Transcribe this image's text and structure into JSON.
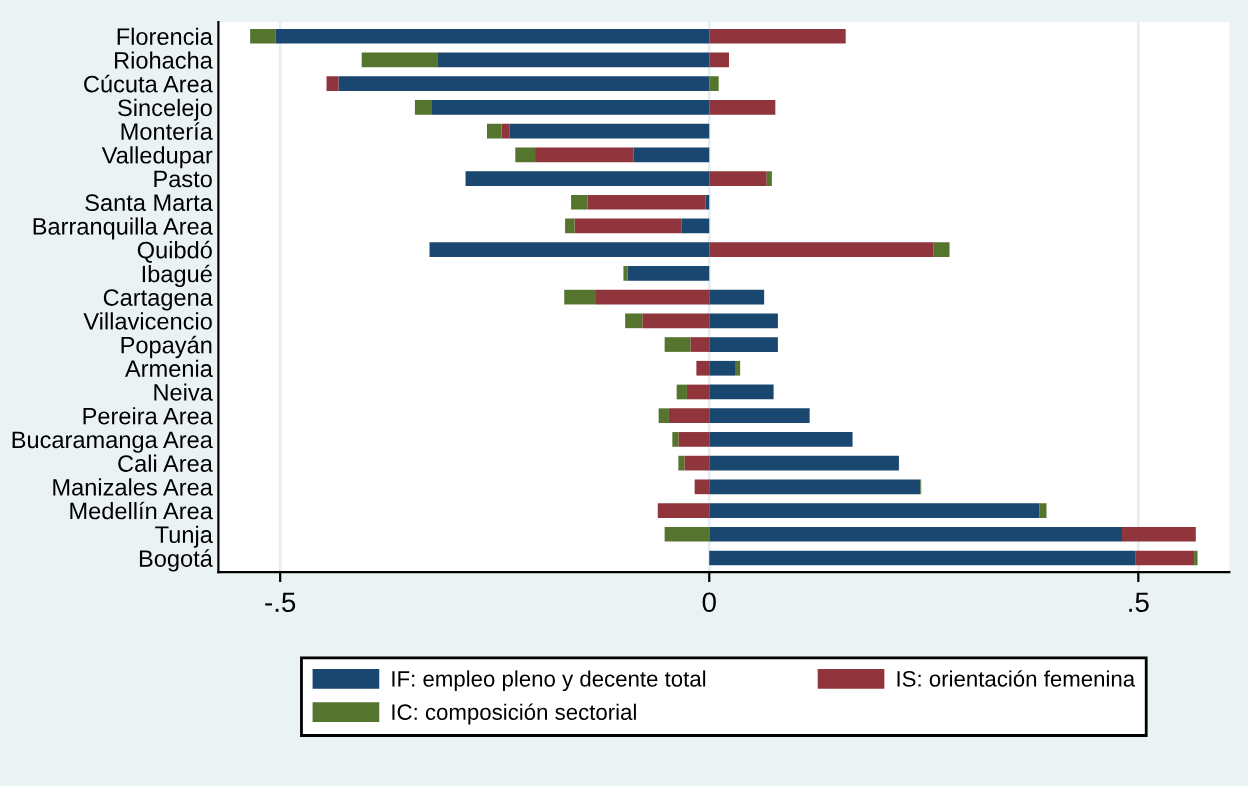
{
  "chart_data": {
    "type": "bar",
    "orientation": "horizontal",
    "stacked": true,
    "categories": [
      "Florencia",
      "Riohacha",
      "Cúcuta Area",
      "Sincelejo",
      "Montería",
      "Valledupar",
      "Pasto",
      "Santa Marta",
      "Barranquilla Area",
      "Quibdó",
      "Ibagué",
      "Cartagena",
      "Villavicencio",
      "Popayán",
      "Armenia",
      "Neiva",
      "Pereira Area",
      "Bucaramanga Area",
      "Cali Area",
      "Manizales Area",
      "Medellín Area",
      "Tunja",
      "Bogotá"
    ],
    "series": [
      {
        "name": "IF: empleo pleno y decente total",
        "color": "#1a476f",
        "values": [
          -0.505,
          -0.317,
          -0.432,
          -0.324,
          -0.233,
          -0.088,
          -0.284,
          -0.004,
          -0.032,
          -0.326,
          -0.095,
          0.064,
          0.08,
          0.08,
          0.03,
          0.075,
          0.117,
          0.167,
          0.221,
          0.246,
          0.385,
          0.481,
          0.497
        ]
      },
      {
        "name": "IS: orientación femenina",
        "color": "#90353b",
        "values": [
          0.159,
          0.023,
          -0.014,
          0.077,
          -0.009,
          -0.115,
          0.067,
          -0.138,
          -0.125,
          0.261,
          null,
          -0.132,
          -0.078,
          -0.022,
          -0.015,
          -0.026,
          -0.047,
          -0.036,
          -0.029,
          -0.017,
          -0.06,
          0.086,
          0.068
        ]
      },
      {
        "name": "IC: composición sectorial",
        "color": "#55752f",
        "values": [
          -0.03,
          -0.088,
          0.011,
          -0.019,
          -0.017,
          -0.023,
          0.006,
          -0.019,
          -0.011,
          0.019,
          -0.005,
          -0.037,
          -0.02,
          -0.03,
          0.006,
          -0.012,
          -0.012,
          -0.007,
          -0.007,
          0.001,
          0.008,
          -0.052,
          0.004
        ]
      }
    ],
    "xlim": [
      -0.572,
      0.606
    ],
    "xticks": [
      {
        "value": -0.5,
        "label": "-.5"
      },
      {
        "value": 0,
        "label": "0"
      },
      {
        "value": 0.5,
        "label": ".5"
      }
    ],
    "grid": "x",
    "legend": "bottom"
  }
}
